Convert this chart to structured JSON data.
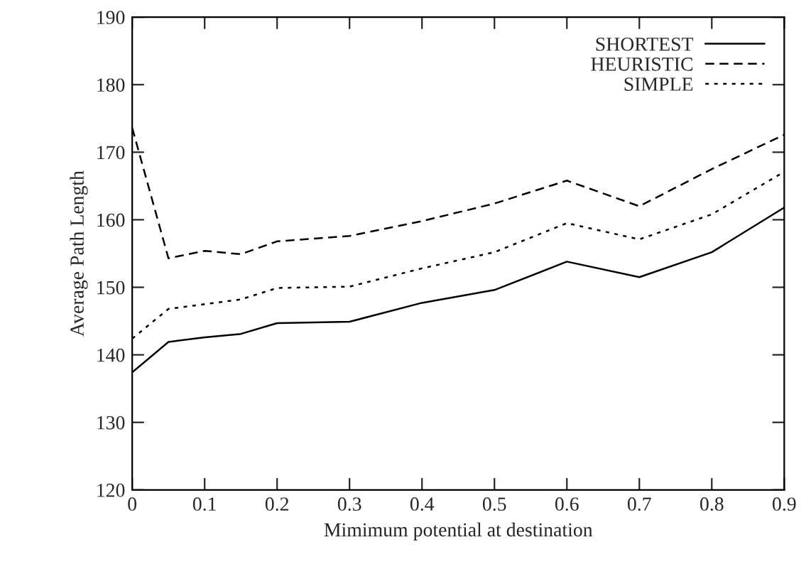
{
  "chart_data": {
    "type": "line",
    "xlabel": "Mimimum potential at destination",
    "ylabel": "Average Path Length",
    "x": [
      0,
      0.05,
      0.1,
      0.15,
      0.2,
      0.3,
      0.4,
      0.5,
      0.6,
      0.7,
      0.8,
      0.9
    ],
    "xlim": [
      0,
      0.9
    ],
    "xticks": [
      0,
      0.1,
      0.2,
      0.3,
      0.4,
      0.5,
      0.6,
      0.7,
      0.8,
      0.9
    ],
    "ylim": [
      120,
      190
    ],
    "yticks": [
      120,
      130,
      140,
      150,
      160,
      170,
      180,
      190
    ],
    "grid": false,
    "legend": "top right",
    "marker": "none",
    "series": [
      {
        "name": "SHORTEST",
        "color": "#000000",
        "line_style": "solid",
        "values": [
          137.4,
          141.9,
          142.6,
          143.1,
          144.7,
          144.9,
          147.7,
          149.6,
          153.8,
          151.5,
          155.2,
          161.8
        ]
      },
      {
        "name": "HEURISTIC",
        "color": "#000000",
        "line_style": "dashed",
        "values": [
          173.6,
          154.3,
          155.4,
          154.9,
          156.8,
          157.6,
          159.8,
          162.4,
          165.8,
          162.0,
          167.5,
          172.6
        ]
      },
      {
        "name": "SIMPLE",
        "color": "#000000",
        "line_style": "dotted",
        "values": [
          142.4,
          146.8,
          147.5,
          148.2,
          149.9,
          150.1,
          152.8,
          155.2,
          159.5,
          157.1,
          160.8,
          167.1
        ]
      }
    ]
  }
}
